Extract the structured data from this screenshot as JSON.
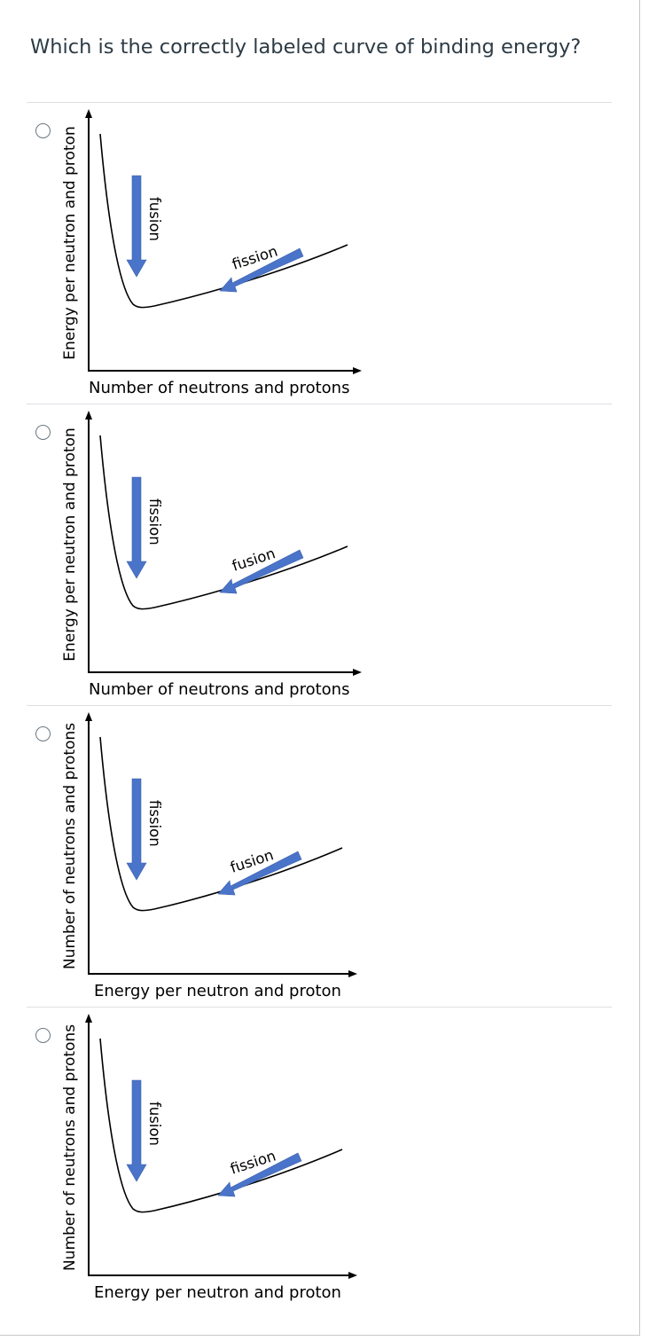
{
  "question": {
    "text": "Which is the correctly labeled curve of binding energy?"
  },
  "options": [
    {
      "y_axis_label": "Energy per neutron and proton",
      "x_axis_label": "Number of neutrons and protons",
      "steep_arrow_label": "fusion",
      "shallow_arrow_label": "fission"
    },
    {
      "y_axis_label": "Energy per neutron and proton",
      "x_axis_label": "Number of neutrons and protons",
      "steep_arrow_label": "fission",
      "shallow_arrow_label": "fusion"
    },
    {
      "y_axis_label": "Number of neutrons and protons",
      "x_axis_label": "Energy per neutron and proton",
      "steep_arrow_label": "fission",
      "shallow_arrow_label": "fusion"
    },
    {
      "y_axis_label": "Number of neutrons and protons",
      "x_axis_label": "Energy per neutron and proton",
      "steep_arrow_label": "fusion",
      "shallow_arrow_label": "fission"
    }
  ],
  "colors": {
    "arrow_fill": "#4a74c9",
    "question_text": "#2d3b45",
    "divider": "#dcdfe3"
  }
}
